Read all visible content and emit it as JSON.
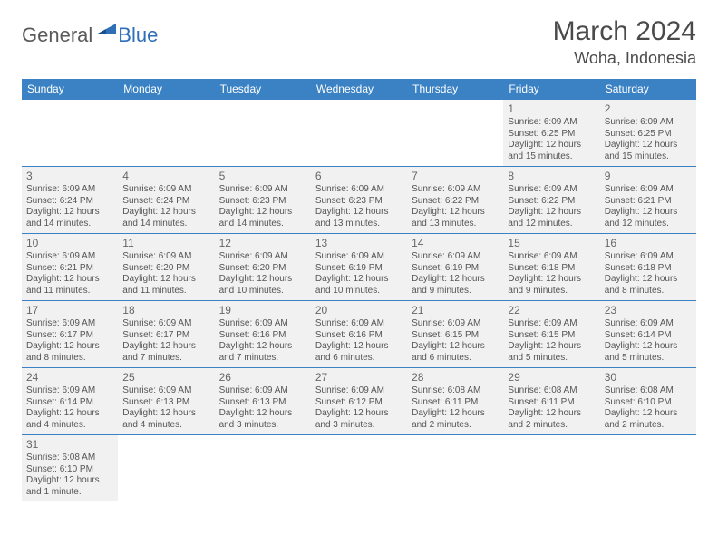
{
  "brand": {
    "part1": "General",
    "part2": "Blue"
  },
  "title": "March 2024",
  "location": "Woha, Indonesia",
  "colors": {
    "header_bg": "#3b82c4",
    "header_text": "#ffffff",
    "cell_bg": "#f1f1f1",
    "border": "#3b82c4",
    "text": "#555555",
    "title_text": "#4a4a4a",
    "brand_gray": "#5a5a5a",
    "brand_blue": "#2e6fb8"
  },
  "weekdays": [
    "Sunday",
    "Monday",
    "Tuesday",
    "Wednesday",
    "Thursday",
    "Friday",
    "Saturday"
  ],
  "weeks": [
    [
      null,
      null,
      null,
      null,
      null,
      {
        "day": "1",
        "sunrise": "Sunrise: 6:09 AM",
        "sunset": "Sunset: 6:25 PM",
        "daylight": "Daylight: 12 hours and 15 minutes."
      },
      {
        "day": "2",
        "sunrise": "Sunrise: 6:09 AM",
        "sunset": "Sunset: 6:25 PM",
        "daylight": "Daylight: 12 hours and 15 minutes."
      }
    ],
    [
      {
        "day": "3",
        "sunrise": "Sunrise: 6:09 AM",
        "sunset": "Sunset: 6:24 PM",
        "daylight": "Daylight: 12 hours and 14 minutes."
      },
      {
        "day": "4",
        "sunrise": "Sunrise: 6:09 AM",
        "sunset": "Sunset: 6:24 PM",
        "daylight": "Daylight: 12 hours and 14 minutes."
      },
      {
        "day": "5",
        "sunrise": "Sunrise: 6:09 AM",
        "sunset": "Sunset: 6:23 PM",
        "daylight": "Daylight: 12 hours and 14 minutes."
      },
      {
        "day": "6",
        "sunrise": "Sunrise: 6:09 AM",
        "sunset": "Sunset: 6:23 PM",
        "daylight": "Daylight: 12 hours and 13 minutes."
      },
      {
        "day": "7",
        "sunrise": "Sunrise: 6:09 AM",
        "sunset": "Sunset: 6:22 PM",
        "daylight": "Daylight: 12 hours and 13 minutes."
      },
      {
        "day": "8",
        "sunrise": "Sunrise: 6:09 AM",
        "sunset": "Sunset: 6:22 PM",
        "daylight": "Daylight: 12 hours and 12 minutes."
      },
      {
        "day": "9",
        "sunrise": "Sunrise: 6:09 AM",
        "sunset": "Sunset: 6:21 PM",
        "daylight": "Daylight: 12 hours and 12 minutes."
      }
    ],
    [
      {
        "day": "10",
        "sunrise": "Sunrise: 6:09 AM",
        "sunset": "Sunset: 6:21 PM",
        "daylight": "Daylight: 12 hours and 11 minutes."
      },
      {
        "day": "11",
        "sunrise": "Sunrise: 6:09 AM",
        "sunset": "Sunset: 6:20 PM",
        "daylight": "Daylight: 12 hours and 11 minutes."
      },
      {
        "day": "12",
        "sunrise": "Sunrise: 6:09 AM",
        "sunset": "Sunset: 6:20 PM",
        "daylight": "Daylight: 12 hours and 10 minutes."
      },
      {
        "day": "13",
        "sunrise": "Sunrise: 6:09 AM",
        "sunset": "Sunset: 6:19 PM",
        "daylight": "Daylight: 12 hours and 10 minutes."
      },
      {
        "day": "14",
        "sunrise": "Sunrise: 6:09 AM",
        "sunset": "Sunset: 6:19 PM",
        "daylight": "Daylight: 12 hours and 9 minutes."
      },
      {
        "day": "15",
        "sunrise": "Sunrise: 6:09 AM",
        "sunset": "Sunset: 6:18 PM",
        "daylight": "Daylight: 12 hours and 9 minutes."
      },
      {
        "day": "16",
        "sunrise": "Sunrise: 6:09 AM",
        "sunset": "Sunset: 6:18 PM",
        "daylight": "Daylight: 12 hours and 8 minutes."
      }
    ],
    [
      {
        "day": "17",
        "sunrise": "Sunrise: 6:09 AM",
        "sunset": "Sunset: 6:17 PM",
        "daylight": "Daylight: 12 hours and 8 minutes."
      },
      {
        "day": "18",
        "sunrise": "Sunrise: 6:09 AM",
        "sunset": "Sunset: 6:17 PM",
        "daylight": "Daylight: 12 hours and 7 minutes."
      },
      {
        "day": "19",
        "sunrise": "Sunrise: 6:09 AM",
        "sunset": "Sunset: 6:16 PM",
        "daylight": "Daylight: 12 hours and 7 minutes."
      },
      {
        "day": "20",
        "sunrise": "Sunrise: 6:09 AM",
        "sunset": "Sunset: 6:16 PM",
        "daylight": "Daylight: 12 hours and 6 minutes."
      },
      {
        "day": "21",
        "sunrise": "Sunrise: 6:09 AM",
        "sunset": "Sunset: 6:15 PM",
        "daylight": "Daylight: 12 hours and 6 minutes."
      },
      {
        "day": "22",
        "sunrise": "Sunrise: 6:09 AM",
        "sunset": "Sunset: 6:15 PM",
        "daylight": "Daylight: 12 hours and 5 minutes."
      },
      {
        "day": "23",
        "sunrise": "Sunrise: 6:09 AM",
        "sunset": "Sunset: 6:14 PM",
        "daylight": "Daylight: 12 hours and 5 minutes."
      }
    ],
    [
      {
        "day": "24",
        "sunrise": "Sunrise: 6:09 AM",
        "sunset": "Sunset: 6:14 PM",
        "daylight": "Daylight: 12 hours and 4 minutes."
      },
      {
        "day": "25",
        "sunrise": "Sunrise: 6:09 AM",
        "sunset": "Sunset: 6:13 PM",
        "daylight": "Daylight: 12 hours and 4 minutes."
      },
      {
        "day": "26",
        "sunrise": "Sunrise: 6:09 AM",
        "sunset": "Sunset: 6:13 PM",
        "daylight": "Daylight: 12 hours and 3 minutes."
      },
      {
        "day": "27",
        "sunrise": "Sunrise: 6:09 AM",
        "sunset": "Sunset: 6:12 PM",
        "daylight": "Daylight: 12 hours and 3 minutes."
      },
      {
        "day": "28",
        "sunrise": "Sunrise: 6:08 AM",
        "sunset": "Sunset: 6:11 PM",
        "daylight": "Daylight: 12 hours and 2 minutes."
      },
      {
        "day": "29",
        "sunrise": "Sunrise: 6:08 AM",
        "sunset": "Sunset: 6:11 PM",
        "daylight": "Daylight: 12 hours and 2 minutes."
      },
      {
        "day": "30",
        "sunrise": "Sunrise: 6:08 AM",
        "sunset": "Sunset: 6:10 PM",
        "daylight": "Daylight: 12 hours and 2 minutes."
      }
    ],
    [
      {
        "day": "31",
        "sunrise": "Sunrise: 6:08 AM",
        "sunset": "Sunset: 6:10 PM",
        "daylight": "Daylight: 12 hours and 1 minute."
      },
      null,
      null,
      null,
      null,
      null,
      null
    ]
  ]
}
